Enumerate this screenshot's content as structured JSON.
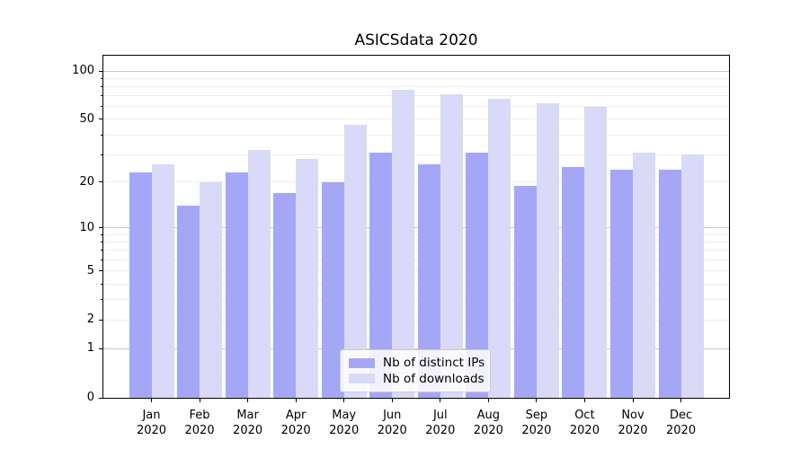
{
  "title": "ASICSdata 2020",
  "chart_data": {
    "type": "bar",
    "title": "ASICSdata 2020",
    "categories": [
      "Jan",
      "Feb",
      "Mar",
      "Apr",
      "May",
      "Jun",
      "Jul",
      "Aug",
      "Sep",
      "Oct",
      "Nov",
      "Dec"
    ],
    "category_year": "2020",
    "series": [
      {
        "name": "Nb of distinct IPs",
        "color": "#a6a6f7",
        "values": [
          23,
          14,
          23,
          17,
          20,
          31,
          26,
          31,
          19,
          25,
          24,
          24
        ]
      },
      {
        "name": "Nb of downloads",
        "color": "#d9d9f8",
        "values": [
          26,
          20,
          32,
          28,
          46,
          76,
          72,
          67,
          63,
          60,
          31,
          30
        ]
      }
    ],
    "y_axis": {
      "scale": "log1p",
      "labeled_ticks": [
        0,
        1,
        2,
        5,
        10,
        20,
        50,
        100
      ],
      "major_gridlines": [
        1,
        10,
        100
      ],
      "minor_gridlines": [
        2,
        3,
        4,
        5,
        6,
        7,
        8,
        9,
        20,
        30,
        40,
        50,
        60,
        70,
        80,
        90
      ],
      "range": [
        0,
        124
      ]
    },
    "xlabel": "",
    "ylabel": "",
    "legend_position": "lower center",
    "grid": "both",
    "colors": {
      "major_grid": "#c8c8c8",
      "minor_grid": "#ededed",
      "axis": "#000000",
      "text": "#000000",
      "background": "#ffffff"
    }
  }
}
